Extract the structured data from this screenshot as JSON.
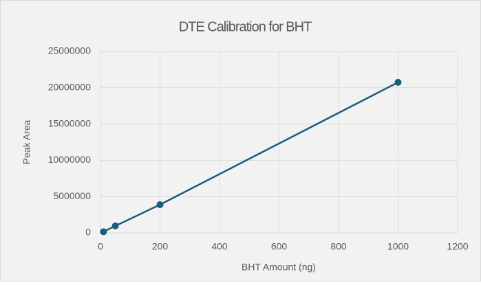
{
  "chart_data": {
    "type": "scatter",
    "title": "DTE Calibration for BHT",
    "x_label": "BHT Amount (ng)",
    "y_label": "Peak Area",
    "x": [
      10,
      50,
      200,
      1000
    ],
    "values": [
      150000,
      950000,
      3880000,
      20750000
    ],
    "color": "#1d5c7c",
    "line": true,
    "xlim": [
      0,
      1200
    ],
    "xticks": [
      0,
      200,
      400,
      600,
      800,
      1000,
      1200
    ],
    "ylim": [
      0,
      25000000
    ],
    "yticks": [
      0,
      5000000,
      10000000,
      15000000,
      20000000,
      25000000
    ],
    "grid": true
  }
}
